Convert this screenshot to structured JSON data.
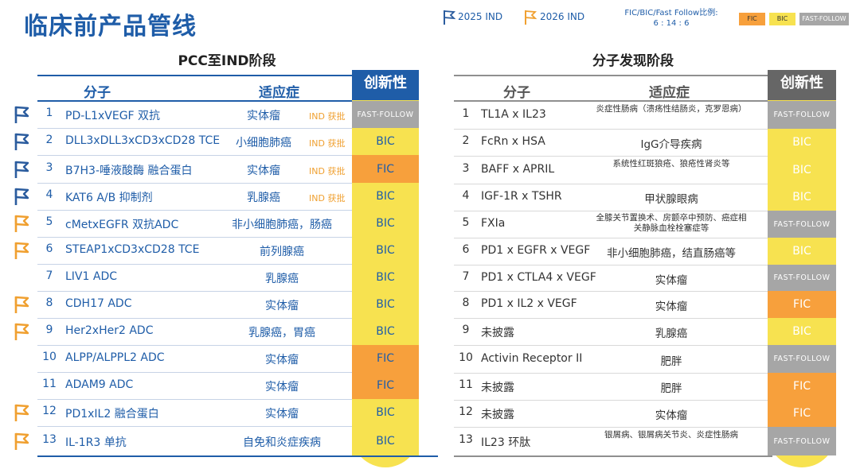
{
  "title": "临床前产品管线",
  "legend": {
    "ind2025": "2025 IND",
    "ind2026": "2026 IND",
    "ratio_label": "FIC/BIC/Fast Follow比例:",
    "ratio_value": "6 : 14 : 6",
    "chips": [
      "FIC",
      "BIC",
      "FAST-FOLLOW"
    ]
  },
  "colors": {
    "blue": "#1f5da8",
    "fic": "#f7a03c",
    "bic": "#f7e250",
    "ff": "#a6a6a6",
    "flag_2025": "#2b5c9e",
    "flag_2026": "#f0a030"
  },
  "left": {
    "section_title": "PCC至IND阶段",
    "headers": {
      "molecule": "分子",
      "indication": "适应症",
      "innovation": "创新性"
    },
    "rows": [
      {
        "no": "1",
        "molecule": "PD-L1xVEGF 双抗",
        "indication": "实体瘤",
        "badge": "IND 获批",
        "innovation": "FAST-FOLLOW",
        "flag": "2025"
      },
      {
        "no": "2",
        "molecule": "DLL3xDLL3xCD3xCD28 TCE",
        "indication": "小细胞肺癌",
        "badge": "IND 获批",
        "innovation": "BIC",
        "flag": "2025"
      },
      {
        "no": "3",
        "molecule": "B7H3-唾液酸酶 融合蛋白",
        "indication": "实体瘤",
        "badge": "IND 获批",
        "innovation": "FIC",
        "flag": "2025"
      },
      {
        "no": "4",
        "molecule": "KAT6 A/B 抑制剂",
        "indication": "乳腺癌",
        "badge": "IND 获批",
        "innovation": "BIC",
        "flag": "2025"
      },
      {
        "no": "5",
        "molecule": "cMetxEGFR 双抗ADC",
        "indication": "非小细胞肺癌，肠癌",
        "badge": "",
        "innovation": "BIC",
        "flag": "2026"
      },
      {
        "no": "6",
        "molecule": "STEAP1xCD3xCD28 TCE",
        "indication": "前列腺癌",
        "badge": "",
        "innovation": "BIC",
        "flag": "2026"
      },
      {
        "no": "7",
        "molecule": "LIV1 ADC",
        "indication": "乳腺癌",
        "badge": "",
        "innovation": "BIC",
        "flag": ""
      },
      {
        "no": "8",
        "molecule": "CDH17 ADC",
        "indication": "实体瘤",
        "badge": "",
        "innovation": "BIC",
        "flag": "2026"
      },
      {
        "no": "9",
        "molecule": "Her2xHer2 ADC",
        "indication": "乳腺癌，胃癌",
        "badge": "",
        "innovation": "BIC",
        "flag": "2026"
      },
      {
        "no": "10",
        "molecule": "ALPP/ALPPL2 ADC",
        "indication": "实体瘤",
        "badge": "",
        "innovation": "FIC",
        "flag": ""
      },
      {
        "no": "11",
        "molecule": "ADAM9 ADC",
        "indication": "实体瘤",
        "badge": "",
        "innovation": "FIC",
        "flag": ""
      },
      {
        "no": "12",
        "molecule": "PD1xIL2 融合蛋白",
        "indication": "实体瘤",
        "badge": "",
        "innovation": "BIC",
        "flag": "2026"
      },
      {
        "no": "13",
        "molecule": "IL-1R3 单抗",
        "indication": "自免和炎症疾病",
        "badge": "",
        "innovation": "BIC",
        "flag": "2026"
      }
    ]
  },
  "right": {
    "section_title": "分子发现阶段",
    "headers": {
      "molecule": "分子",
      "indication": "适应症",
      "innovation": "创新性"
    },
    "rows": [
      {
        "no": "1",
        "molecule": "TL1A x IL23",
        "indication": "炎症性肠病（溃疡性结肠炎，克罗恩病）",
        "small": true,
        "innovation": "FAST-FOLLOW"
      },
      {
        "no": "2",
        "molecule": "FcRn x HSA",
        "indication": "IgG介导疾病",
        "small": false,
        "innovation": "BIC"
      },
      {
        "no": "3",
        "molecule": "BAFF x APRIL",
        "indication": "系统性红斑狼疮、狼疮性肾炎等",
        "small": true,
        "innovation": "BIC"
      },
      {
        "no": "4",
        "molecule": "IGF-1R x TSHR",
        "indication": "甲状腺眼病",
        "small": false,
        "innovation": "BIC"
      },
      {
        "no": "5",
        "molecule": "FXIa",
        "indication": "全膝关节置换术、房颤卒中预防、癌症相关静脉血栓栓塞症等",
        "small": true,
        "innovation": "FAST-FOLLOW"
      },
      {
        "no": "6",
        "molecule": "PD1 x EGFR x VEGF",
        "indication": "非小细胞肺癌，结直肠癌等",
        "small": false,
        "innovation": "BIC"
      },
      {
        "no": "7",
        "molecule": "PD1 x CTLA4 x VEGF",
        "indication": "实体瘤",
        "small": false,
        "innovation": "FAST-FOLLOW"
      },
      {
        "no": "8",
        "molecule": "PD1 x IL2 x VEGF",
        "indication": "实体瘤",
        "small": false,
        "innovation": "FIC"
      },
      {
        "no": "9",
        "molecule": "未披露",
        "indication": "乳腺癌",
        "small": false,
        "innovation": "BIC"
      },
      {
        "no": "10",
        "molecule": "Activin Receptor II",
        "indication": "肥胖",
        "small": false,
        "innovation": "FAST-FOLLOW"
      },
      {
        "no": "11",
        "molecule": "未披露",
        "indication": "肥胖",
        "small": false,
        "innovation": "FIC"
      },
      {
        "no": "12",
        "molecule": "未披露",
        "indication": "实体瘤",
        "small": false,
        "innovation": "FIC"
      },
      {
        "no": "13",
        "molecule": "IL23 环肽",
        "indication": "银屑病、银屑病关节炎、炎症性肠病",
        "small": true,
        "innovation": "FAST-FOLLOW"
      }
    ]
  }
}
